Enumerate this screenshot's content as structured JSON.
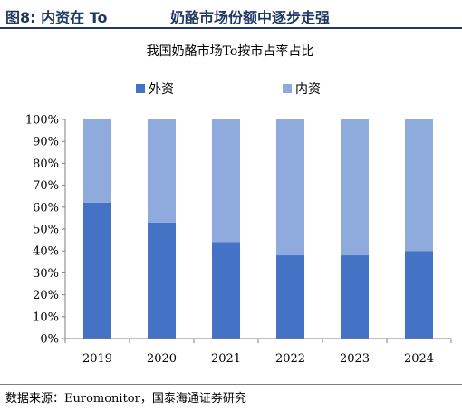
{
  "header": {
    "figure_number": "图8:",
    "figure_title_left": "内资在 To",
    "figure_title_right": "奶酪市场份额中逐步走强"
  },
  "source": "数据来源：Euromonitor，国泰海通证券研究",
  "colors": {
    "foreign": "#4472c4",
    "domestic": "#8faadc",
    "header": "#1f3864"
  },
  "chart_data": {
    "type": "bar",
    "stacked": true,
    "title": "我国奶酪市场To按市占率占比",
    "categories": [
      "2019",
      "2020",
      "2021",
      "2022",
      "2023",
      "2024"
    ],
    "series": [
      {
        "name": "外资",
        "values": [
          62,
          53,
          44,
          38,
          38,
          40
        ]
      },
      {
        "name": "内资",
        "values": [
          38,
          47,
          56,
          62,
          62,
          60
        ]
      }
    ],
    "ylim": [
      0,
      100
    ],
    "yticks": [
      "0%",
      "10%",
      "20%",
      "30%",
      "40%",
      "50%",
      "60%",
      "70%",
      "80%",
      "90%",
      "100%"
    ],
    "legend_position": "top",
    "grid": false
  }
}
